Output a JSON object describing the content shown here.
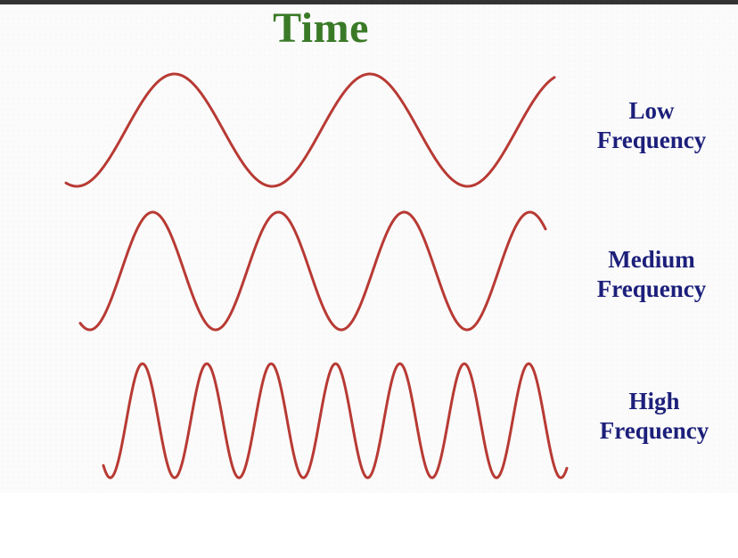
{
  "title": "Time",
  "colors": {
    "title": "#3a7a27",
    "labels": "#1c1f7a",
    "wave": "#b83a34"
  },
  "waves": [
    {
      "id": "low",
      "label_line1": "Low",
      "label_line2": "Frequency",
      "cycles": 2.5,
      "relative_frequency": "low"
    },
    {
      "id": "medium",
      "label_line1": "Medium",
      "label_line2": "Frequency",
      "cycles": 3.7,
      "relative_frequency": "medium"
    },
    {
      "id": "high",
      "label_line1": "High",
      "label_line2": "Frequency",
      "cycles": 7.2,
      "relative_frequency": "high"
    }
  ]
}
